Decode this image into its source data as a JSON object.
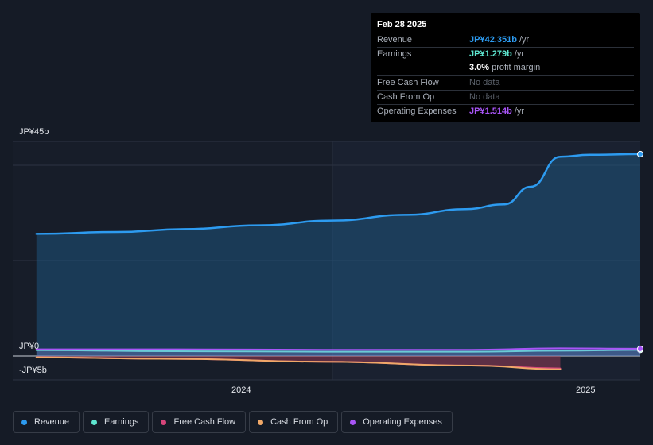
{
  "tooltip": {
    "date": "Feb 28 2025",
    "rows": [
      {
        "label": "Revenue",
        "value": "JP¥42.351b",
        "suffix": "/yr",
        "color": "#2d9bf0"
      },
      {
        "label": "Earnings",
        "value": "JP¥1.279b",
        "suffix": "/yr",
        "color": "#5ee6d0"
      },
      {
        "label": "",
        "value": "3.0%",
        "suffix": "profit margin",
        "color": "#ffffff"
      },
      {
        "label": "Free Cash Flow",
        "value": "No data",
        "suffix": "",
        "color": ""
      },
      {
        "label": "Cash From Op",
        "value": "No data",
        "suffix": "",
        "color": ""
      },
      {
        "label": "Operating Expenses",
        "value": "JP¥1.514b",
        "suffix": "/yr",
        "color": "#a855f7"
      }
    ]
  },
  "axis": {
    "y_top": "JP¥45b",
    "y_zero": "JP¥0",
    "y_bottom": "-JP¥5b",
    "x_ticks": [
      "2024",
      "2025"
    ]
  },
  "legend": [
    {
      "label": "Revenue",
      "color": "#2d9bf0"
    },
    {
      "label": "Earnings",
      "color": "#5ee6d0"
    },
    {
      "label": "Free Cash Flow",
      "color": "#d6457a"
    },
    {
      "label": "Cash From Op",
      "color": "#f0a868"
    },
    {
      "label": "Operating Expenses",
      "color": "#a855f7"
    }
  ],
  "chart_data": {
    "type": "area",
    "ylim": [
      -5,
      45
    ],
    "xlim": [
      2023.05,
      2025.17
    ],
    "x_ticks": [
      2024,
      2025
    ],
    "grid": true,
    "legend_placement": "bottom",
    "series": [
      {
        "name": "Revenue",
        "color": "#2d9bf0",
        "x": [
          2023.13,
          2023.4,
          2023.63,
          2023.88,
          2024.13,
          2024.38,
          2024.58,
          2024.71,
          2024.8,
          2024.9,
          2025.0,
          2025.17
        ],
        "values": [
          25.6,
          26.0,
          26.6,
          27.4,
          28.4,
          29.6,
          30.8,
          31.8,
          35.5,
          41.8,
          42.2,
          42.35
        ]
      },
      {
        "name": "Earnings",
        "color": "#5ee6d0",
        "x": [
          2023.13,
          2023.6,
          2024.1,
          2024.6,
          2024.9,
          2025.17
        ],
        "values": [
          1.2,
          1.0,
          0.9,
          0.9,
          1.1,
          1.279
        ]
      },
      {
        "name": "Free Cash Flow",
        "color": "#d6457a",
        "x": [
          2023.13,
          2023.6,
          2024.1,
          2024.6,
          2024.9
        ],
        "values": [
          -0.3,
          -0.6,
          -1.2,
          -2.0,
          -2.6
        ]
      },
      {
        "name": "Cash From Op",
        "color": "#f0a868",
        "x": [
          2023.13,
          2023.6,
          2024.1,
          2024.6,
          2024.9
        ],
        "values": [
          -0.3,
          -0.6,
          -1.2,
          -2.0,
          -2.8
        ]
      },
      {
        "name": "Operating Expenses",
        "color": "#a855f7",
        "x": [
          2023.13,
          2023.6,
          2024.1,
          2024.6,
          2024.9,
          2025.17
        ],
        "values": [
          1.4,
          1.4,
          1.3,
          1.3,
          1.6,
          1.514
        ]
      }
    ]
  }
}
